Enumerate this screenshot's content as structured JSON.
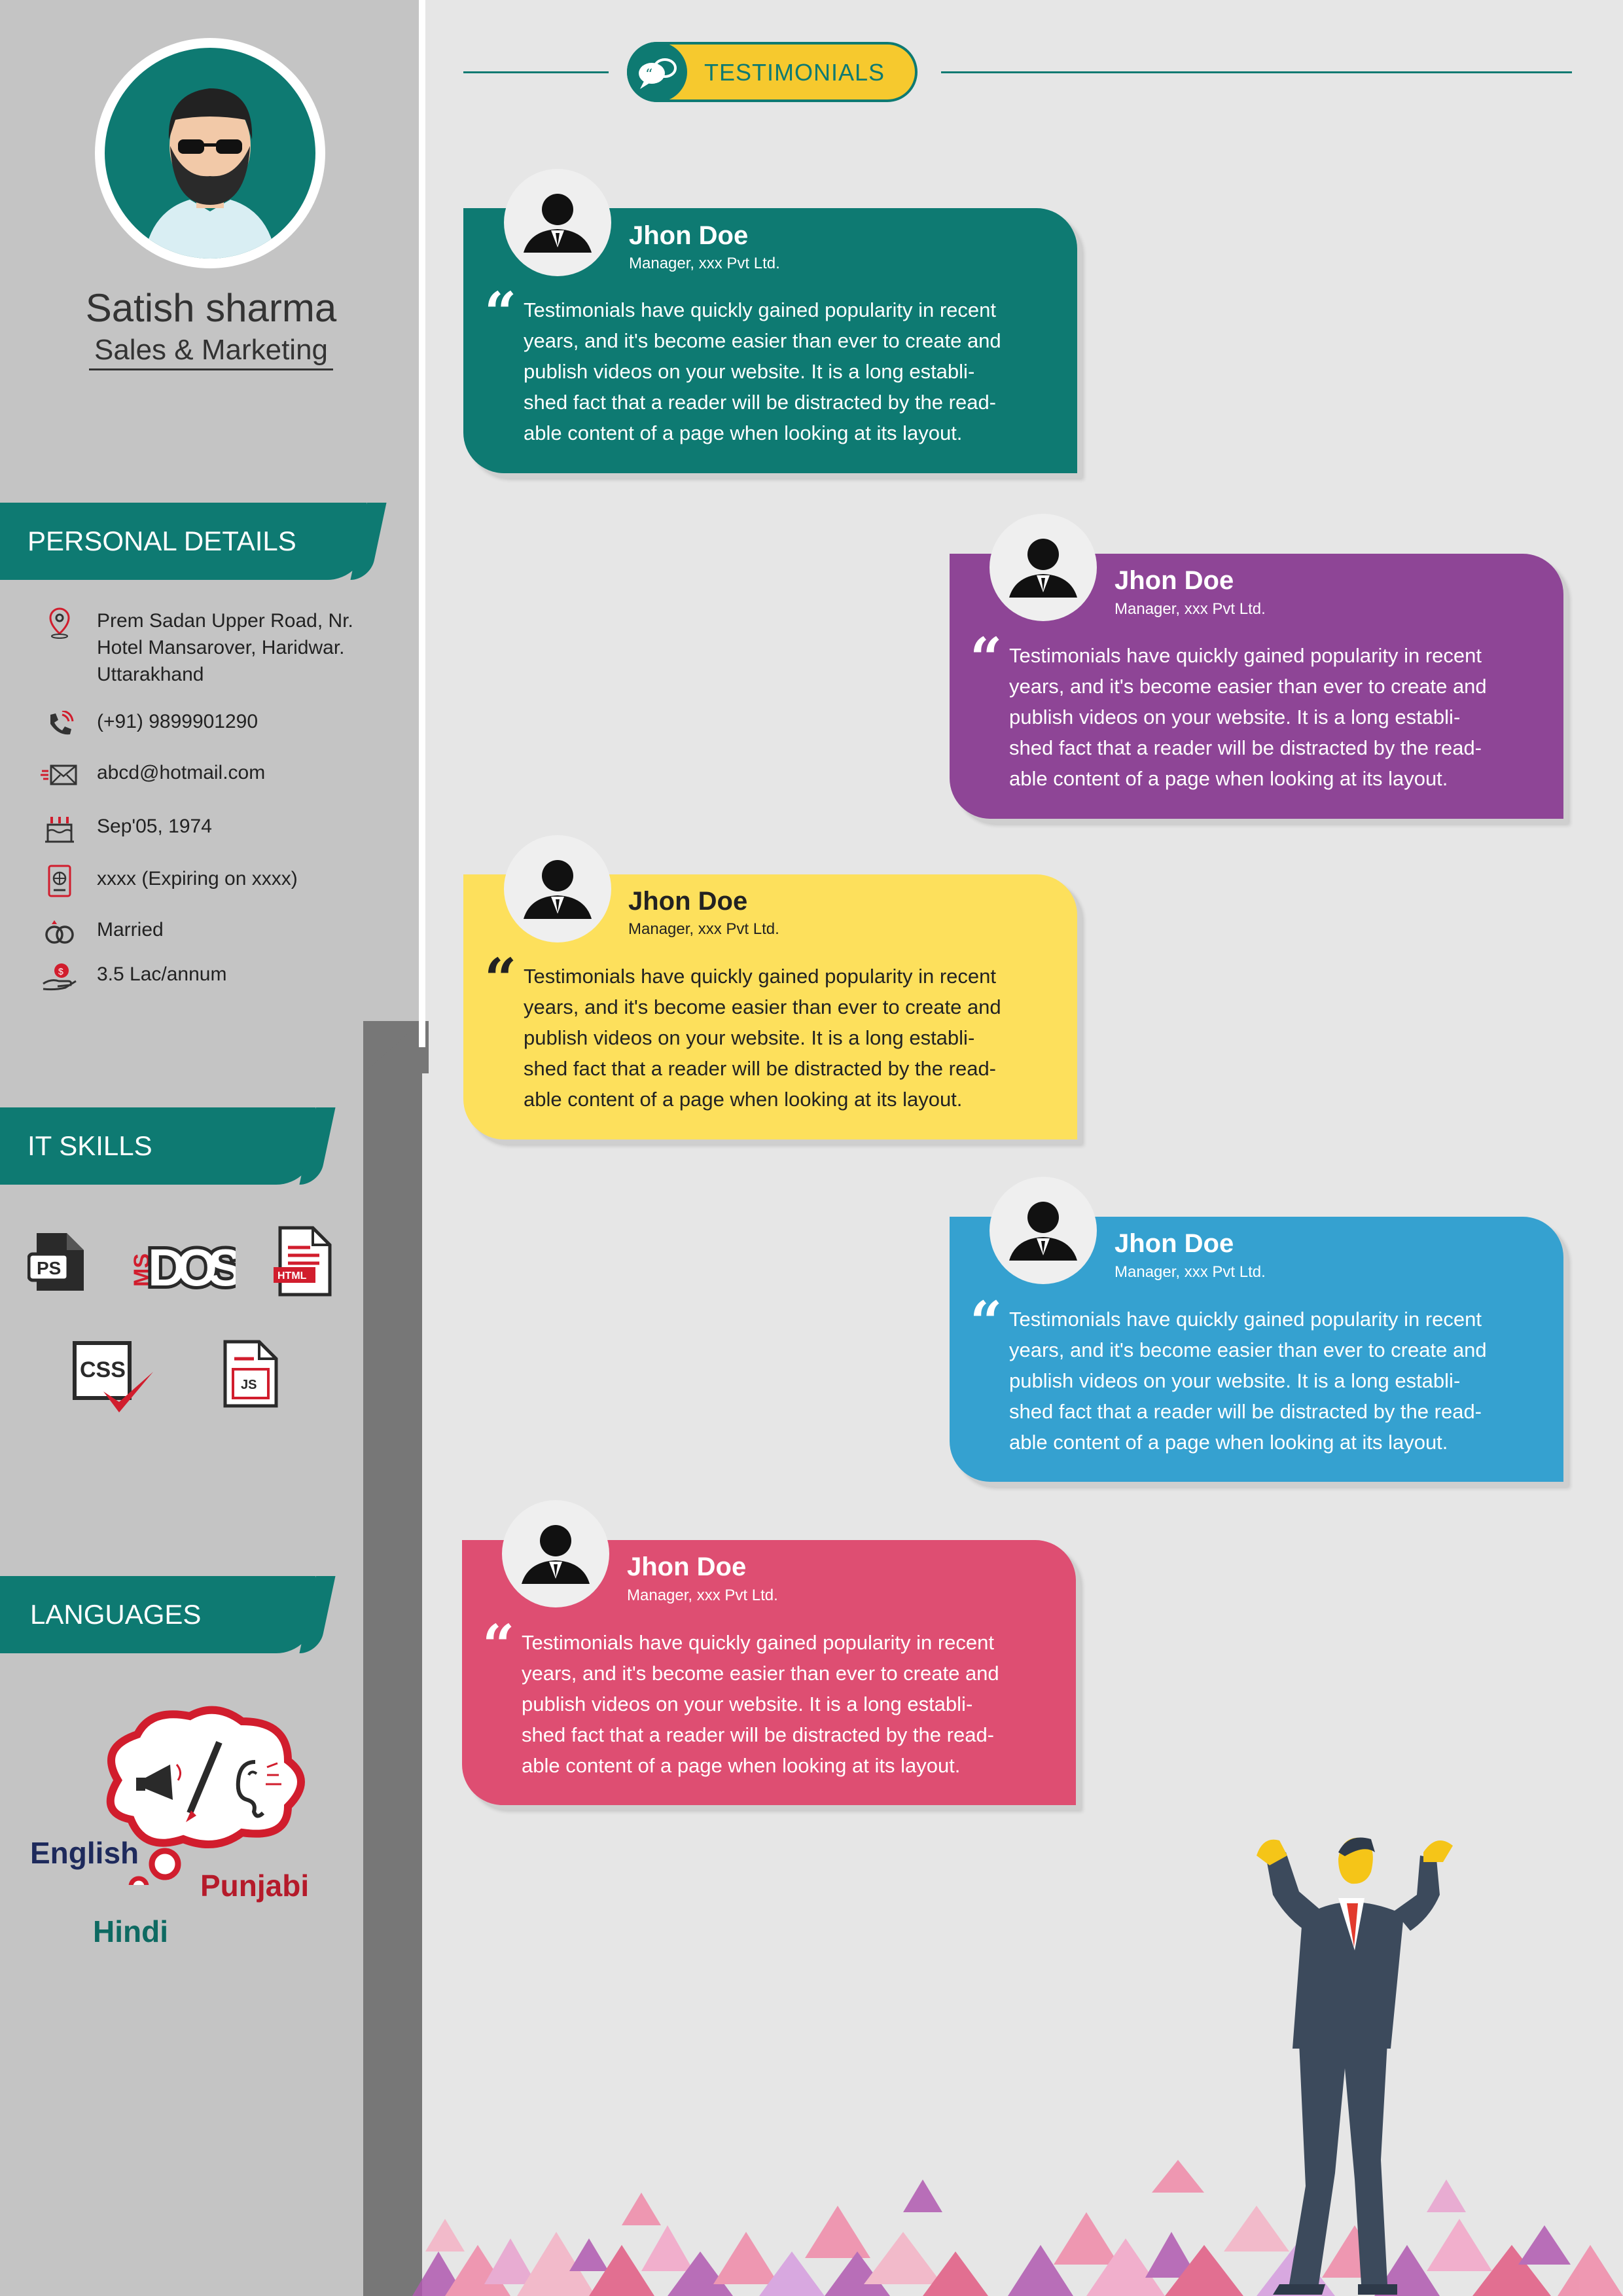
{
  "profile": {
    "name": "Satish sharma",
    "role": "Sales & Marketing"
  },
  "sections": {
    "personal": "PERSONAL DETAILS",
    "skills": "IT SKILLS",
    "languages": "LANGUAGES",
    "testimonials": "TESTIMONIALS"
  },
  "personal": {
    "address_1": "Prem Sadan Upper Road, Nr.",
    "address_2": "Hotel Mansarover, Haridwar.",
    "address_3": "Uttarakhand",
    "phone": "(+91) 9899901290",
    "email": "abcd@hotmail.com",
    "dob": "Sep'05, 1974",
    "passport": "xxxx (Expiring on xxxx)",
    "marital": "Married",
    "salary": "3.5 Lac/annum"
  },
  "skills": {
    "ps": "PS",
    "ms": "MS",
    "dos": "DOS",
    "html": "HTML",
    "css": "CSS",
    "js": "JS"
  },
  "languages": {
    "english": "English",
    "punjabi": "Punjabi",
    "hindi": "Hindi"
  },
  "testimonials": [
    {
      "name": "Jhon Doe",
      "company": "Manager, xxx Pvt Ltd.",
      "l1": "Testimonials have quickly gained popularity in recent",
      "l2": "years, and it's become easier than ever to create and",
      "l3": "publish videos on your website. It is a long establi-",
      "l4": "shed fact that a reader will be distracted by the read-",
      "l5": "able content of a page when looking at its layout."
    },
    {
      "name": "Jhon Doe",
      "company": "Manager, xxx Pvt Ltd.",
      "l1": "Testimonials have quickly gained popularity in recent",
      "l2": "years, and it's become easier than ever to create and",
      "l3": "publish videos on your website. It is a long establi-",
      "l4": "shed fact that a reader will be distracted by the read-",
      "l5": "able content of a page when looking at its layout."
    },
    {
      "name": "Jhon Doe",
      "company": "Manager, xxx Pvt Ltd.",
      "l1": "Testimonials have quickly gained popularity in recent",
      "l2": "years, and it's become easier than ever to create and",
      "l3": "publish videos on your website. It is a long establi-",
      "l4": "shed fact that a reader will be distracted by the read-",
      "l5": "able content of a page when looking at its layout."
    },
    {
      "name": "Jhon Doe",
      "company": "Manager, xxx Pvt Ltd.",
      "l1": "Testimonials have quickly gained popularity in recent",
      "l2": "years, and it's become easier than ever to create and",
      "l3": "publish videos on your website. It is a long establi-",
      "l4": "shed fact that a reader will be distracted by the read-",
      "l5": "able content of a page when looking at its layout."
    },
    {
      "name": "Jhon Doe",
      "company": "Manager, xxx Pvt Ltd.",
      "l1": "Testimonials have quickly gained popularity in recent",
      "l2": "years, and it's become easier than ever to create and",
      "l3": "publish videos on your website. It is a long establi-",
      "l4": "shed fact that a reader will be distracted by the read-",
      "l5": "able content of a page when looking at its layout."
    }
  ],
  "colors": {
    "teal": "#0e7a72",
    "purple": "#8e4596",
    "yellow": "#fde05c",
    "blue": "#35a1d0",
    "pink": "#de4e72",
    "sidebar": "#c4c4c4",
    "pill": "#f6c92e"
  },
  "icons": {
    "quote": "“"
  }
}
